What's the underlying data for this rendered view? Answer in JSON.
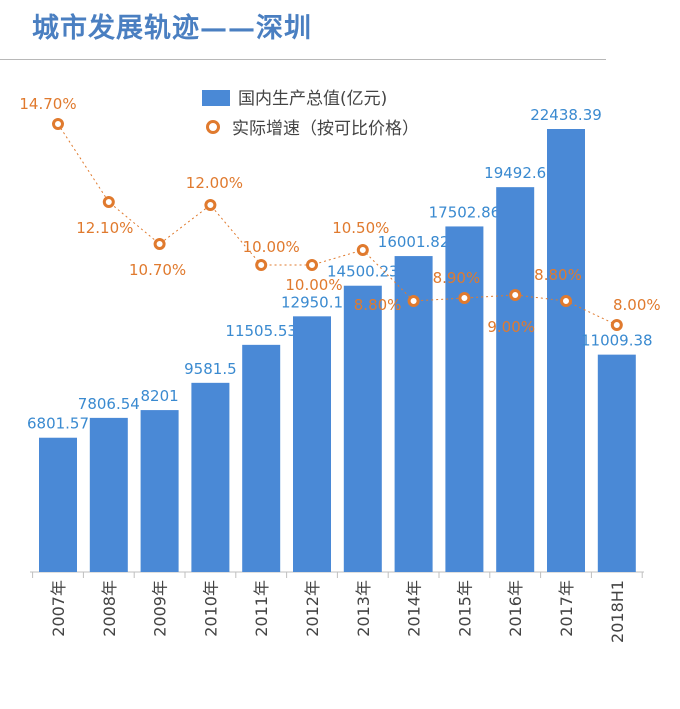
{
  "title": "城市发展轨迹——深圳",
  "chart_data": {
    "type": "bar+line",
    "categories": [
      "2007年",
      "2008年",
      "2009年",
      "2010年",
      "2011年",
      "2012年",
      "2013年",
      "2014年",
      "2015年",
      "2016年",
      "2017年",
      "2018H1"
    ],
    "series": [
      {
        "name": "国内生产总值(亿元)",
        "type": "bar",
        "color": "#4a89d6",
        "values": [
          6801.57,
          7806.54,
          8201,
          9581.5,
          11505.53,
          12950.1,
          14500.23,
          16001.82,
          17502.86,
          19492.6,
          22438.39,
          11009.38
        ],
        "labels": [
          "6801.57",
          "7806.54",
          "8201",
          "9581.5",
          "11505.53",
          "12950.1",
          "14500.23",
          "16001.82",
          "17502.86",
          "19492.6",
          "22438.39",
          "11009.38"
        ]
      },
      {
        "name": "实际增速（按可比价格）",
        "type": "line",
        "color": "#e07a2e",
        "values": [
          14.7,
          12.1,
          10.7,
          12.0,
          10.0,
          10.0,
          10.5,
          8.8,
          8.9,
          9.0,
          8.8,
          8.0
        ],
        "labels": [
          "14.70%",
          "12.10%",
          "10.70%",
          "12.00%",
          "10.00%",
          "10.00%",
          "10.50%",
          "8.80%",
          "8.90%",
          "9.00%",
          "8.80%",
          "8.00%"
        ]
      }
    ],
    "legend": "top-center",
    "grid": false
  }
}
